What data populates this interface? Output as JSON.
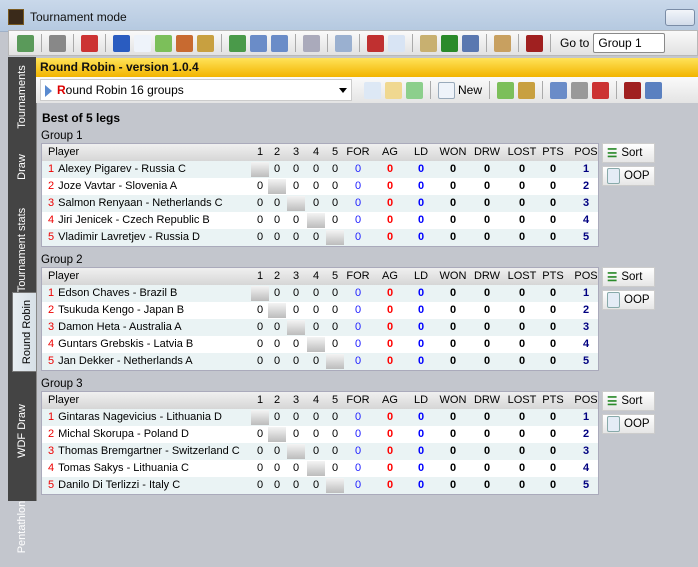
{
  "window": {
    "title": "Tournament mode"
  },
  "toolbar": {
    "icons": [
      "exit-icon",
      "print-icon",
      "pdf-icon",
      "help-icon",
      "new-document-icon",
      "add-player-icon",
      "players-icon",
      "random-player-icon",
      "refresh-icon",
      "import-icon",
      "export-icon",
      "eraser-icon",
      "edit-icon",
      "sort-az-icon",
      "document-icon",
      "settings-icon",
      "numbered-list-icon",
      "save-icon",
      "search-icon",
      "mask-icon"
    ],
    "goto_label": "Go to",
    "goto_value": "Group 1"
  },
  "sidebar": {
    "tabs": [
      {
        "label": "Tournaments"
      },
      {
        "label": "Draw"
      },
      {
        "label": "Tournament stats"
      },
      {
        "label": "Round Robin",
        "active": true
      },
      {
        "label": "WDF Draw"
      },
      {
        "label": "Pentathlon"
      }
    ]
  },
  "panel": {
    "title": "Round Robin - version 1.0.4",
    "combo_first": "R",
    "combo_rest": "ound Robin 16 groups",
    "new_label": "New"
  },
  "content": {
    "best_of": "Best of 5 legs",
    "sort_label": "Sort",
    "oop_label": "OOP",
    "columns": [
      "Player",
      "1",
      "2",
      "3",
      "4",
      "5",
      "FOR",
      "AG",
      "LD",
      "WON",
      "DRW",
      "LOST",
      "PTS",
      "POS"
    ],
    "groups": [
      {
        "name": "Group 1",
        "players": [
          "Alexey Pigarev - Russia C",
          "Joze Vavtar - Slovenia A",
          "Salmon Renyaan - Netherlands C",
          "Jiri Jenicek - Czech Republic B",
          "Vladimir Lavretjev - Russia D"
        ]
      },
      {
        "name": "Group 2",
        "players": [
          "Edson Chaves - Brazil B",
          "Tsukuda Kengo - Japan B",
          "Damon Heta - Australia A",
          "Guntars Grebskis - Latvia B",
          "Jan Dekker - Netherlands A"
        ]
      },
      {
        "name": "Group 3",
        "players": [
          "Gintaras Nagevicius - Lithuania D",
          "Michal Skorupa - Poland D",
          "Thomas Bremgartner - Switzerland C",
          "Tomas Sakys - Lithuania C",
          "Danilo Di Terlizzi - Italy C"
        ]
      }
    ],
    "cell_value": "0"
  },
  "colors": {
    "for": "#2020ff",
    "ag": "#ff0000",
    "ld": "#0000ff",
    "stat": "#000000",
    "pos": "#000080",
    "rank": "#ee0000",
    "header_yellow": "#f7c600"
  }
}
